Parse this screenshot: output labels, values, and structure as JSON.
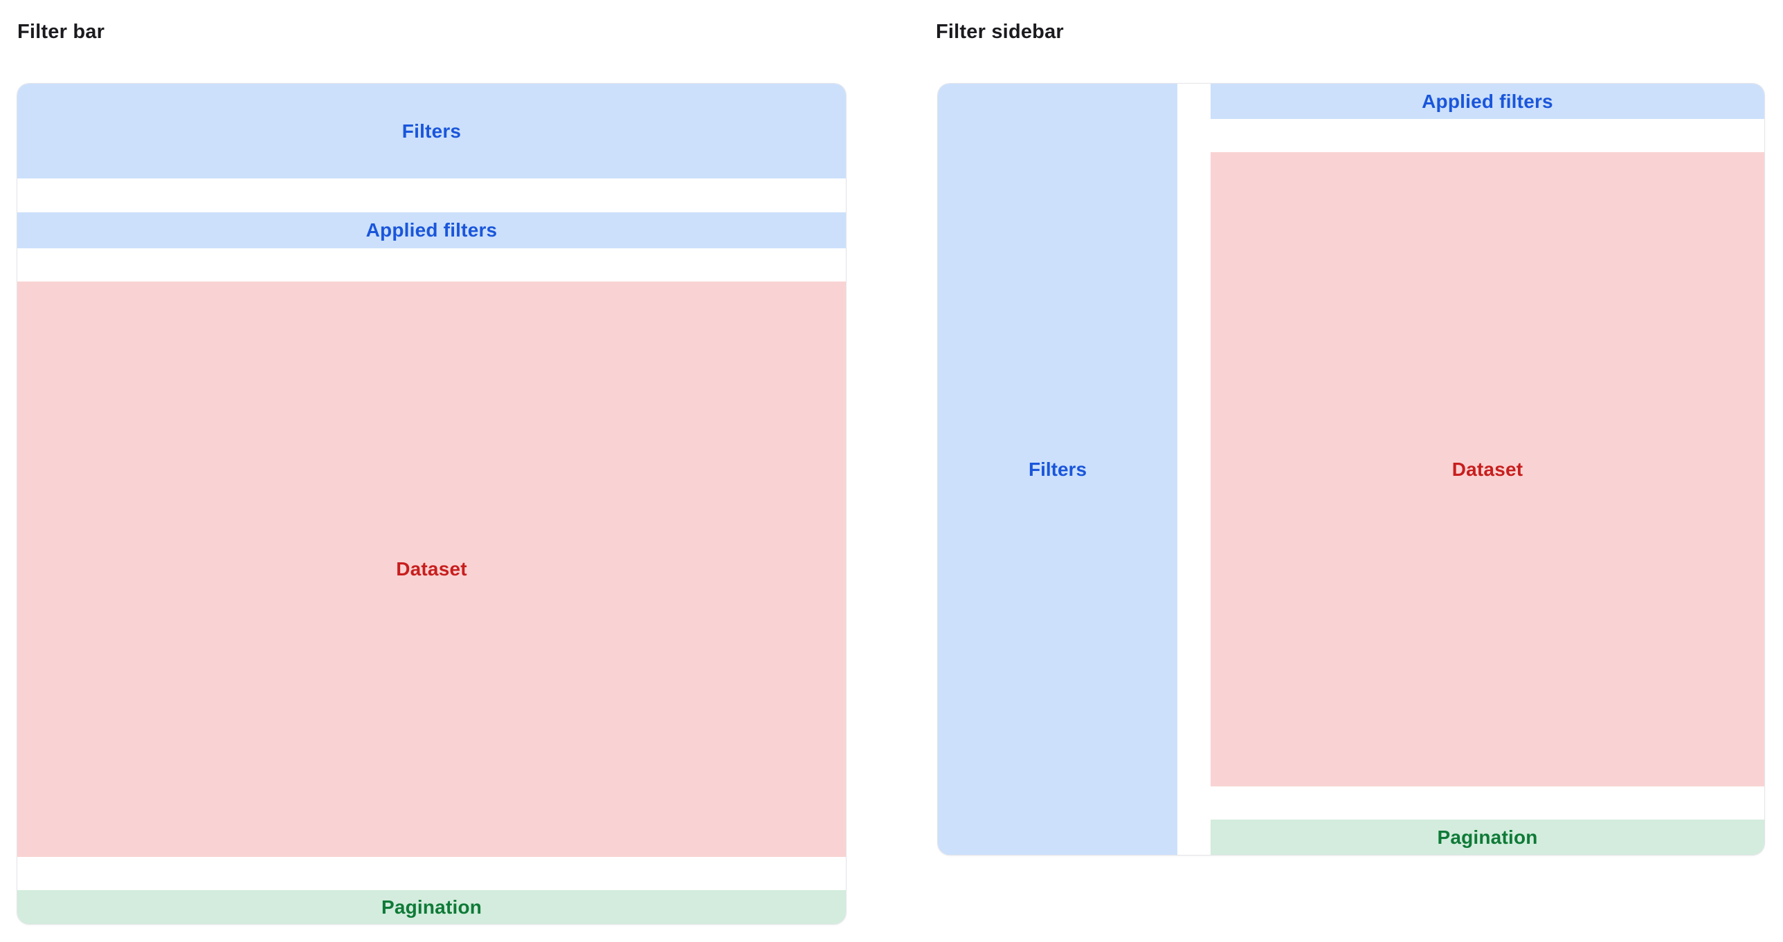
{
  "figures": [
    {
      "title": "Filter bar",
      "blocks": {
        "filters": "Filters",
        "applied_filters": "Applied filters",
        "dataset": "Dataset",
        "pagination": "Pagination"
      }
    },
    {
      "title": "Filter sidebar",
      "blocks": {
        "filters": "Filters",
        "applied_filters": "Applied filters",
        "dataset": "Dataset",
        "pagination": "Pagination"
      }
    }
  ],
  "colors": {
    "filters_bg": "#cce0fb",
    "filters_text": "#1a56db",
    "dataset_bg": "#f9d3d3",
    "dataset_text": "#c81e1e",
    "pagination_bg": "#d3ecdd",
    "pagination_text": "#0e7a37",
    "frame_border": "#e5e5ea",
    "heading_text": "#1b1b1f"
  }
}
